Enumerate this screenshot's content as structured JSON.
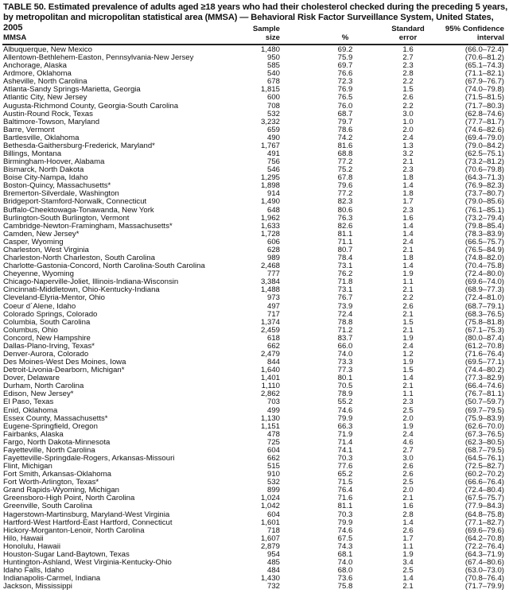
{
  "title": "TABLE 50. Estimated prevalence of adults aged ≥18 years who had their cholesterol checked during the preceding 5 years, by metropolitan and micropolitan statistical area (MMSA) — Behavioral Risk Factor Surveillance System, United States, 2005",
  "columns": [
    "MMSA",
    "Sample size",
    "%",
    "Standard error",
    "95% Confidence interval"
  ],
  "rows": [
    [
      "Albuquerque, New Mexico",
      "1,480",
      "69.2",
      "1.6",
      "(66.0–72.4)"
    ],
    [
      "Allentown-Bethlehem-Easton, Pennsylvania-New Jersey",
      "950",
      "75.9",
      "2.7",
      "(70.6–81.2)"
    ],
    [
      "Anchorage, Alaska",
      "585",
      "69.7",
      "2.3",
      "(65.1–74.3)"
    ],
    [
      "Ardmore, Oklahoma",
      "540",
      "76.6",
      "2.8",
      "(71.1–82.1)"
    ],
    [
      "Asheville, North Carolina",
      "678",
      "72.3",
      "2.2",
      "(67.9–76.7)"
    ],
    [
      "Atlanta-Sandy Springs-Marietta, Georgia",
      "1,815",
      "76.9",
      "1.5",
      "(74.0–79.8)"
    ],
    [
      "Atlantic City, New Jersey",
      "600",
      "76.5",
      "2.6",
      "(71.5–81.5)"
    ],
    [
      "Augusta-Richmond County, Georgia-South Carolina",
      "708",
      "76.0",
      "2.2",
      "(71.7–80.3)"
    ],
    [
      "Austin-Round Rock, Texas",
      "532",
      "68.7",
      "3.0",
      "(62.8–74.6)"
    ],
    [
      "Baltimore-Towson, Maryland",
      "3,232",
      "79.7",
      "1.0",
      "(77.7–81.7)"
    ],
    [
      "Barre, Vermont",
      "659",
      "78.6",
      "2.0",
      "(74.6–82.6)"
    ],
    [
      "Bartlesville, Oklahoma",
      "490",
      "74.2",
      "2.4",
      "(69.4–79.0)"
    ],
    [
      "Bethesda-Gaithersburg-Frederick, Maryland*",
      "1,767",
      "81.6",
      "1.3",
      "(79.0–84.2)"
    ],
    [
      "Billings, Montana",
      "491",
      "68.8",
      "3.2",
      "(62.5–75.1)"
    ],
    [
      "Birmingham-Hoover, Alabama",
      "756",
      "77.2",
      "2.1",
      "(73.2–81.2)"
    ],
    [
      "Bismarck, North Dakota",
      "546",
      "75.2",
      "2.3",
      "(70.6–79.8)"
    ],
    [
      "Boise City-Nampa, Idaho",
      "1,295",
      "67.8",
      "1.8",
      "(64.3–71.3)"
    ],
    [
      "Boston-Quincy, Massachusetts*",
      "1,898",
      "79.6",
      "1.4",
      "(76.9–82.3)"
    ],
    [
      "Bremerton-Silverdale, Washington",
      "914",
      "77.2",
      "1.8",
      "(73.7–80.7)"
    ],
    [
      "Bridgeport-Stamford-Norwalk, Connecticut",
      "1,490",
      "82.3",
      "1.7",
      "(79.0–85.6)"
    ],
    [
      "Buffalo-Cheektowaga-Tonawanda, New York",
      "648",
      "80.6",
      "2.3",
      "(76.1–85.1)"
    ],
    [
      "Burlington-South Burlington, Vermont",
      "1,962",
      "76.3",
      "1.6",
      "(73.2–79.4)"
    ],
    [
      "Cambridge-Newton-Framingham, Massachusetts*",
      "1,633",
      "82.6",
      "1.4",
      "(79.8–85.4)"
    ],
    [
      "Camden, New Jersey*",
      "1,728",
      "81.1",
      "1.4",
      "(78.3–83.9)"
    ],
    [
      "Casper, Wyoming",
      "606",
      "71.1",
      "2.4",
      "(66.5–75.7)"
    ],
    [
      "Charleston, West Virginia",
      "628",
      "80.7",
      "2.1",
      "(76.5–84.9)"
    ],
    [
      "Charleston-North Charleston, South Carolina",
      "989",
      "78.4",
      "1.8",
      "(74.8–82.0)"
    ],
    [
      "Charlotte-Gastonia-Concord, North Carolina-South Carolina",
      "2,468",
      "73.1",
      "1.4",
      "(70.4–75.8)"
    ],
    [
      "Cheyenne, Wyoming",
      "777",
      "76.2",
      "1.9",
      "(72.4–80.0)"
    ],
    [
      "Chicago-Naperville-Joliet, Illinois-Indiana-Wisconsin",
      "3,384",
      "71.8",
      "1.1",
      "(69.6–74.0)"
    ],
    [
      "Cincinnati-Middletown, Ohio-Kentucky-Indiana",
      "1,488",
      "73.1",
      "2.1",
      "(68.9–77.3)"
    ],
    [
      "Cleveland-Elyria-Mentor, Ohio",
      "973",
      "76.7",
      "2.2",
      "(72.4–81.0)"
    ],
    [
      "Coeur d´Alene, Idaho",
      "497",
      "73.9",
      "2.6",
      "(68.7–79.1)"
    ],
    [
      "Colorado Springs, Colorado",
      "717",
      "72.4",
      "2.1",
      "(68.3–76.5)"
    ],
    [
      "Columbia, South Carolina",
      "1,374",
      "78.8",
      "1.5",
      "(75.8–81.8)"
    ],
    [
      "Columbus, Ohio",
      "2,459",
      "71.2",
      "2.1",
      "(67.1–75.3)"
    ],
    [
      "Concord, New Hampshire",
      "618",
      "83.7",
      "1.9",
      "(80.0–87.4)"
    ],
    [
      "Dallas-Plano-Irving, Texas*",
      "662",
      "66.0",
      "2.4",
      "(61.2–70.8)"
    ],
    [
      "Denver-Aurora, Colorado",
      "2,479",
      "74.0",
      "1.2",
      "(71.6–76.4)"
    ],
    [
      "Des Moines-West Des Moines, Iowa",
      "844",
      "73.3",
      "1.9",
      "(69.5–77.1)"
    ],
    [
      "Detroit-Livonia-Dearborn, Michigan*",
      "1,640",
      "77.3",
      "1.5",
      "(74.4–80.2)"
    ],
    [
      "Dover, Delaware",
      "1,401",
      "80.1",
      "1.4",
      "(77.3–82.9)"
    ],
    [
      "Durham, North Carolina",
      "1,110",
      "70.5",
      "2.1",
      "(66.4–74.6)"
    ],
    [
      "Edison, New Jersey*",
      "2,862",
      "78.9",
      "1.1",
      "(76.7–81.1)"
    ],
    [
      "El Paso, Texas",
      "703",
      "55.2",
      "2.3",
      "(50.7–59.7)"
    ],
    [
      "Enid, Oklahoma",
      "499",
      "74.6",
      "2.5",
      "(69.7–79.5)"
    ],
    [
      "Essex County, Massachusetts*",
      "1,130",
      "79.9",
      "2.0",
      "(75.9–83.9)"
    ],
    [
      "Eugene-Springfield, Oregon",
      "1,151",
      "66.3",
      "1.9",
      "(62.6–70.0)"
    ],
    [
      "Fairbanks, Alaska",
      "478",
      "71.9",
      "2.4",
      "(67.3–76.5)"
    ],
    [
      "Fargo, North Dakota-Minnesota",
      "725",
      "71.4",
      "4.6",
      "(62.3–80.5)"
    ],
    [
      "Fayetteville, North Carolina",
      "604",
      "74.1",
      "2.7",
      "(68.7–79.5)"
    ],
    [
      "Fayetteville-Springdale-Rogers, Arkansas-Missouri",
      "662",
      "70.3",
      "3.0",
      "(64.5–76.1)"
    ],
    [
      "Flint, Michigan",
      "515",
      "77.6",
      "2.6",
      "(72.5–82.7)"
    ],
    [
      "Fort Smith, Arkansas-Oklahoma",
      "910",
      "65.2",
      "2.6",
      "(60.2–70.2)"
    ],
    [
      "Fort Worth-Arlington, Texas*",
      "532",
      "71.5",
      "2.5",
      "(66.6–76.4)"
    ],
    [
      "Grand Rapids-Wyoming, Michigan",
      "899",
      "76.4",
      "2.0",
      "(72.4–80.4)"
    ],
    [
      "Greensboro-High Point, North Carolina",
      "1,024",
      "71.6",
      "2.1",
      "(67.5–75.7)"
    ],
    [
      "Greenville, South Carolina",
      "1,042",
      "81.1",
      "1.6",
      "(77.9–84.3)"
    ],
    [
      "Hagerstown-Martinsburg, Maryland-West Virginia",
      "604",
      "70.3",
      "2.8",
      "(64.8–75.8)"
    ],
    [
      "Hartford-West Hartford-East Hartford, Connecticut",
      "1,601",
      "79.9",
      "1.4",
      "(77.1–82.7)"
    ],
    [
      "Hickory-Morganton-Lenoir, North Carolina",
      "718",
      "74.6",
      "2.6",
      "(69.6–79.6)"
    ],
    [
      "Hilo, Hawaii",
      "1,607",
      "67.5",
      "1.7",
      "(64.2–70.8)"
    ],
    [
      "Honolulu, Hawaii",
      "2,879",
      "74.3",
      "1.1",
      "(72.2–76.4)"
    ],
    [
      "Houston-Sugar Land-Baytown, Texas",
      "954",
      "68.1",
      "1.9",
      "(64.3–71.9)"
    ],
    [
      "Huntington-Ashland, West Virginia-Kentucky-Ohio",
      "485",
      "74.0",
      "3.4",
      "(67.4–80.6)"
    ],
    [
      "Idaho Falls, Idaho",
      "484",
      "68.0",
      "2.5",
      "(63.0–73.0)"
    ],
    [
      "Indianapolis-Carmel, Indiana",
      "1,430",
      "73.6",
      "1.4",
      "(70.8–76.4)"
    ],
    [
      "Jackson, Mississippi",
      "732",
      "75.8",
      "2.1",
      "(71.7–79.9)"
    ]
  ]
}
